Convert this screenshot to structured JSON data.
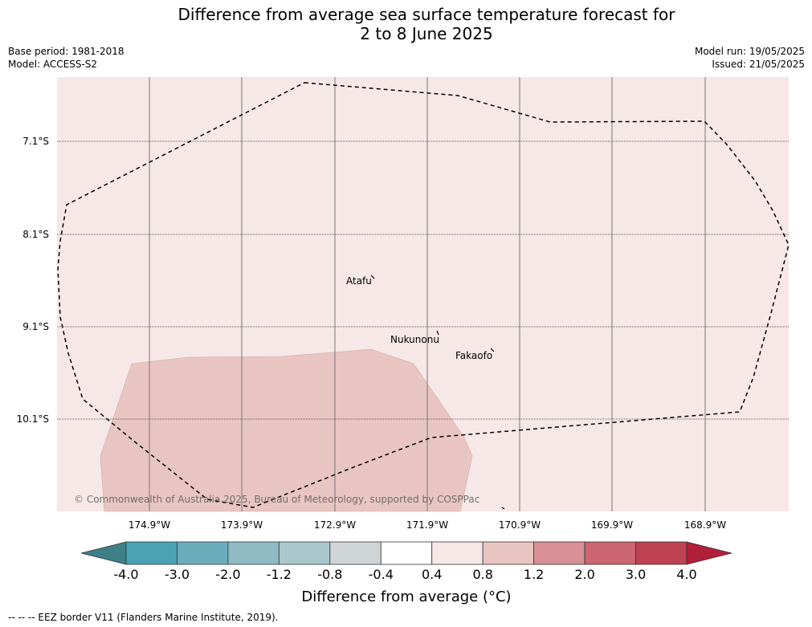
{
  "title_line1": "Difference from average sea surface temperature forecast for",
  "title_line2": "2 to 8 June 2025",
  "base_period": "Base period: 1981-2018",
  "model": "Model: ACCESS-S2",
  "model_run": "Model run: 19/05/2025",
  "issued": "Issued: 21/05/2025",
  "lat_labels": [
    "7.1°S",
    "8.1°S",
    "9.1°S",
    "10.1°S"
  ],
  "lon_labels": [
    "174.9°W",
    "173.9°W",
    "172.9°W",
    "171.9°W",
    "170.9°W",
    "169.9°W",
    "168.9°W"
  ],
  "islands": {
    "atafu": "Atafu",
    "nukunonu": "Nukunonu",
    "fakaofo": "Fakaofo"
  },
  "copyright": "© Commonwealth of Australia 2025, Bureau of Meteorology, supported by COSPPac",
  "background_anomaly_range": [
    0.4,
    0.8
  ],
  "patch_anomaly_range": [
    0.8,
    1.2
  ],
  "colorbar": {
    "title": "Difference from average (°C)",
    "ticks": [
      "-4.0",
      "-3.0",
      "-2.0",
      "-1.2",
      "-0.8",
      "-0.4",
      "0.4",
      "0.8",
      "1.2",
      "2.0",
      "3.0",
      "4.0"
    ],
    "colors": [
      "#4aa3b3",
      "#6cadbb",
      "#8fbcc4",
      "#aac8cc",
      "#d0d6d8",
      "#ffffff",
      "#f5e8e7",
      "#e8c5c1",
      "#d89096",
      "#cc6670",
      "#be4252"
    ],
    "under_color": "#3e7f88",
    "over_color": "#b21f3a"
  },
  "footnote": "-- -- -- EEZ border V11 (Flanders Marine Institute, 2019)."
}
